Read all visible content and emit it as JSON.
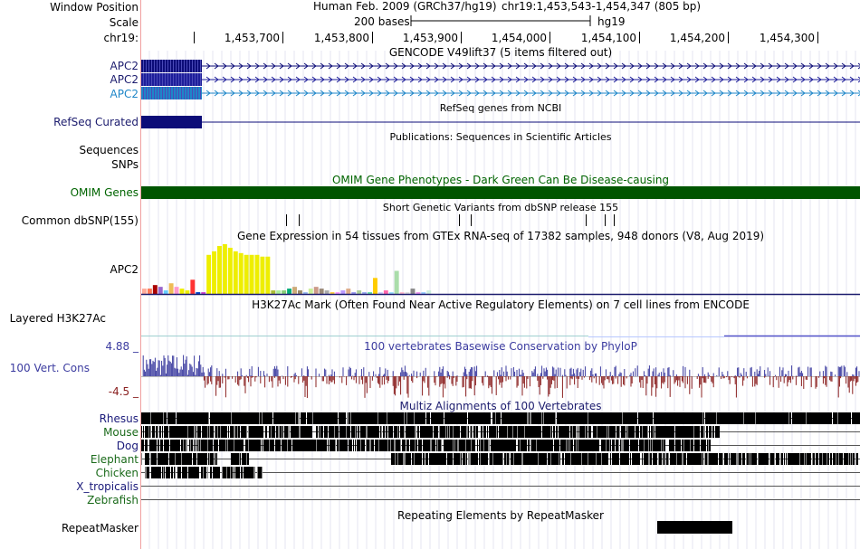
{
  "header": {
    "window_position_label": "Window Position",
    "scale_label": "Scale",
    "chrom_label": "chr19:",
    "assembly": "Human Feb. 2009 (GRCh37/hg19)",
    "position": "chr19:1,453,543-1,454,347 (805 bp)",
    "scale_text": "200 bases",
    "db": "hg19",
    "ruler_ticks": [
      "1,453,700",
      "1,453,800",
      "1,453,900",
      "1,454,000",
      "1,454,100",
      "1,454,200",
      "1,454,300"
    ]
  },
  "tracks": {
    "gencode": {
      "title": "GENCODE V49lift37 (5 items filtered out)",
      "items": [
        "APC2",
        "APC2",
        "APC2"
      ]
    },
    "refseq": {
      "label": "RefSeq Curated",
      "title": "RefSeq genes from NCBI"
    },
    "publications": {
      "label": "Sequences",
      "title": "Publications: Sequences in Scientific Articles"
    },
    "snps": {
      "label": "SNPs"
    },
    "omim": {
      "label": "OMIM Genes",
      "title": "OMIM Gene Phenotypes - Dark Green Can Be Disease-causing"
    },
    "dbsnp": {
      "label": "Common dbSNP(155)",
      "title": "Short Genetic Variants from dbSNP release 155"
    },
    "gtex": {
      "label": "APC2",
      "title": "Gene Expression in 54 tissues from GTEx RNA-seq of 17382 samples, 948 donors (V8, Aug 2019)",
      "values": [
        3,
        3,
        5,
        4,
        2,
        6,
        4,
        3,
        2,
        8,
        1,
        1,
        22,
        24,
        27,
        28,
        26,
        24,
        23,
        22,
        22,
        22,
        21,
        21,
        2,
        2,
        2,
        3,
        4,
        2,
        1,
        3,
        4,
        3,
        2,
        1,
        1,
        2,
        3,
        1,
        2,
        1,
        1,
        9,
        1,
        2,
        1,
        13,
        1,
        1,
        3,
        1,
        1,
        2
      ],
      "colors": [
        "#FFAA99",
        "#FF7755",
        "#AA0000",
        "#9966CC",
        "#66CCFF",
        "#EEBB55",
        "#FF99CC",
        "#EEEE00",
        "#EEEE00",
        "#FF3333",
        "#0044CC",
        "#CC44CC",
        "#EEEE00",
        "#EEEE00",
        "#EEEE00",
        "#EEEE00",
        "#EEEE00",
        "#EEEE00",
        "#EEEE00",
        "#EEEE00",
        "#EEEE00",
        "#EEEE00",
        "#EEEE00",
        "#EEEE00",
        "#AABB33",
        "#AAEE99",
        "#88CC77",
        "#00AA77",
        "#CCAA77",
        "#998866",
        "#99BBEE",
        "#CCEE99",
        "#CC9988",
        "#998877",
        "#AAAAAA",
        "#FFCC44",
        "#FF99FF",
        "#BB99FF",
        "#DDAA88",
        "#9999EE",
        "#AACC99",
        "#99AAEE",
        "#66DDAA",
        "#FFCC00",
        "#CCCCFF",
        "#FF66AA",
        "#99DDFF",
        "#AADDAA",
        "#FFBBCC",
        "#DDDDDD",
        "#888888",
        "#EE99EE",
        "#99CCFF",
        "#CCEEDD"
      ]
    },
    "h3k27ac": {
      "label": "Layered H3K27Ac",
      "title": "H3K27Ac Mark (Often Found Near Active Regulatory Elements) on 7 cell lines from ENCODE"
    },
    "conservation": {
      "label": "100 Vert. Cons",
      "title": "100 vertebrates Basewise Conservation by PhyloP",
      "max": "4.88 _",
      "min": "-4.5 _"
    },
    "multiz": {
      "title": "Multiz Alignments of 100 Vertebrates",
      "species": [
        {
          "name": "Rhesus",
          "color": "#1a1a7a"
        },
        {
          "name": "Mouse",
          "color": "#1a6a1a"
        },
        {
          "name": "Dog",
          "color": "#1a1a7a"
        },
        {
          "name": "Elephant",
          "color": "#1a6a1a"
        },
        {
          "name": "Chicken",
          "color": "#1a6a1a"
        },
        {
          "name": "X_tropicalis",
          "color": "#1a1a7a"
        },
        {
          "name": "Zebrafish",
          "color": "#1a6a1a"
        }
      ]
    },
    "repeatmasker": {
      "label": "RepeatMasker",
      "title": "Repeating Elements by RepeatMasker"
    }
  },
  "colors": {
    "label_blue": "#1c1c6e",
    "gencode_dark": "#0c0c78",
    "gencode_mid": "#1e1e9a",
    "gencode_light": "#1e86c8",
    "omim": "#005500",
    "omim_title": "#006400",
    "cons_pos": "#3c3ca0",
    "cons_neg": "#8a2020",
    "grid": "#e6e6f0",
    "ruler_red": "#c80000"
  }
}
